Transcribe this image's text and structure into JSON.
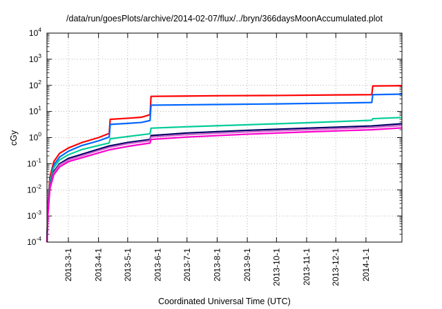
{
  "chart_data": {
    "type": "line",
    "title": "/data/run/goesPlots/archive/2014-02-07/flux/../bryn/366daysMoonAccumulated.plot",
    "xlabel": "Coordinated Universal Time (UTC)",
    "ylabel": "cGy",
    "yscale": "log",
    "ylim_exponents": [
      -4,
      4
    ],
    "ytick_base": "10",
    "ytick_exponents": [
      "-4",
      "-3",
      "-2",
      "-1",
      "0",
      "1",
      "2",
      "3",
      "4"
    ],
    "xlim": [
      "2013-02-07",
      "2014-02-07"
    ],
    "xtick_labels": [
      "2013-3-1",
      "2013-4-1",
      "2013-5-1",
      "2013-6-1",
      "2013-7-1",
      "2013-8-1",
      "2013-9-1",
      "2013-10-1",
      "2013-11-1",
      "2013-12-1",
      "2014-1-1"
    ],
    "grid": true,
    "legend": false,
    "series": [
      {
        "color": "#ff0000",
        "x": [
          "2013-02-07",
          "2013-02-08",
          "2013-02-10",
          "2013-02-14",
          "2013-02-20",
          "2013-03-01",
          "2013-03-15",
          "2013-04-01",
          "2013-04-12",
          "2013-04-13",
          "2013-05-01",
          "2013-05-15",
          "2013-05-24",
          "2013-05-25",
          "2013-07-01",
          "2013-08-01",
          "2013-10-01",
          "2013-12-01",
          "2014-01-07",
          "2014-01-08",
          "2014-02-07"
        ],
        "y": [
          0.0001,
          0.003,
          0.03,
          0.12,
          0.25,
          0.4,
          0.65,
          1.0,
          1.45,
          5.0,
          5.5,
          6.0,
          7.5,
          38,
          39,
          40,
          41,
          43,
          44,
          95,
          97
        ]
      },
      {
        "color": "#0066ff",
        "x": [
          "2013-02-07",
          "2013-02-08",
          "2013-02-10",
          "2013-02-14",
          "2013-02-20",
          "2013-03-01",
          "2013-03-15",
          "2013-04-01",
          "2013-04-12",
          "2013-04-13",
          "2013-05-01",
          "2013-05-15",
          "2013-05-24",
          "2013-05-25",
          "2013-07-01",
          "2013-08-01",
          "2013-10-01",
          "2013-12-01",
          "2014-01-07",
          "2014-01-08",
          "2014-02-07"
        ],
        "y": [
          0.0001,
          0.002,
          0.02,
          0.09,
          0.18,
          0.3,
          0.5,
          0.75,
          1.05,
          3.2,
          3.5,
          3.8,
          4.5,
          17.5,
          18,
          18.5,
          19.5,
          21,
          22,
          44,
          46
        ]
      },
      {
        "color": "#00cc99",
        "x": [
          "2013-02-07",
          "2013-02-08",
          "2013-02-10",
          "2013-02-14",
          "2013-02-20",
          "2013-03-01",
          "2013-03-15",
          "2013-04-01",
          "2013-04-12",
          "2013-04-13",
          "2013-05-01",
          "2013-05-24",
          "2013-05-25",
          "2013-07-01",
          "2013-09-01",
          "2013-11-01",
          "2014-01-07",
          "2014-01-08",
          "2014-02-07"
        ],
        "y": [
          0.0001,
          0.002,
          0.02,
          0.07,
          0.14,
          0.22,
          0.35,
          0.5,
          0.62,
          0.9,
          1.1,
          1.4,
          2.3,
          2.6,
          3.1,
          3.7,
          4.6,
          5.3,
          5.9
        ]
      },
      {
        "color": "#000066",
        "x": [
          "2013-02-07",
          "2013-02-08",
          "2013-02-10",
          "2013-02-14",
          "2013-02-20",
          "2013-03-01",
          "2013-04-01",
          "2013-04-12",
          "2013-05-01",
          "2013-05-24",
          "2013-05-25",
          "2013-07-01",
          "2013-09-01",
          "2013-11-01",
          "2014-01-07",
          "2014-02-07"
        ],
        "y": [
          0.0001,
          0.0015,
          0.015,
          0.05,
          0.1,
          0.16,
          0.36,
          0.48,
          0.65,
          0.85,
          1.2,
          1.5,
          1.9,
          2.3,
          2.8,
          3.4
        ]
      },
      {
        "color": "#cc66cc",
        "x": [
          "2013-02-07",
          "2013-02-08",
          "2013-02-10",
          "2013-02-14",
          "2013-02-20",
          "2013-03-01",
          "2013-04-01",
          "2013-04-12",
          "2013-05-01",
          "2013-05-24",
          "2013-05-25",
          "2013-07-01",
          "2013-09-01",
          "2013-11-01",
          "2014-01-07",
          "2014-02-07"
        ],
        "y": [
          0.0001,
          0.0013,
          0.013,
          0.045,
          0.09,
          0.14,
          0.32,
          0.42,
          0.58,
          0.76,
          1.05,
          1.3,
          1.65,
          2.0,
          2.45,
          2.9
        ]
      },
      {
        "color": "#ff00cc",
        "x": [
          "2013-02-07",
          "2013-02-08",
          "2013-02-10",
          "2013-02-14",
          "2013-02-20",
          "2013-03-01",
          "2013-04-01",
          "2013-04-12",
          "2013-05-01",
          "2013-05-24",
          "2013-05-25",
          "2013-07-01",
          "2013-09-01",
          "2013-11-01",
          "2014-01-07",
          "2014-02-07"
        ],
        "y": [
          0.0001,
          0.0011,
          0.011,
          0.038,
          0.075,
          0.12,
          0.26,
          0.34,
          0.46,
          0.62,
          0.85,
          1.05,
          1.35,
          1.65,
          2.0,
          2.35
        ]
      }
    ]
  }
}
